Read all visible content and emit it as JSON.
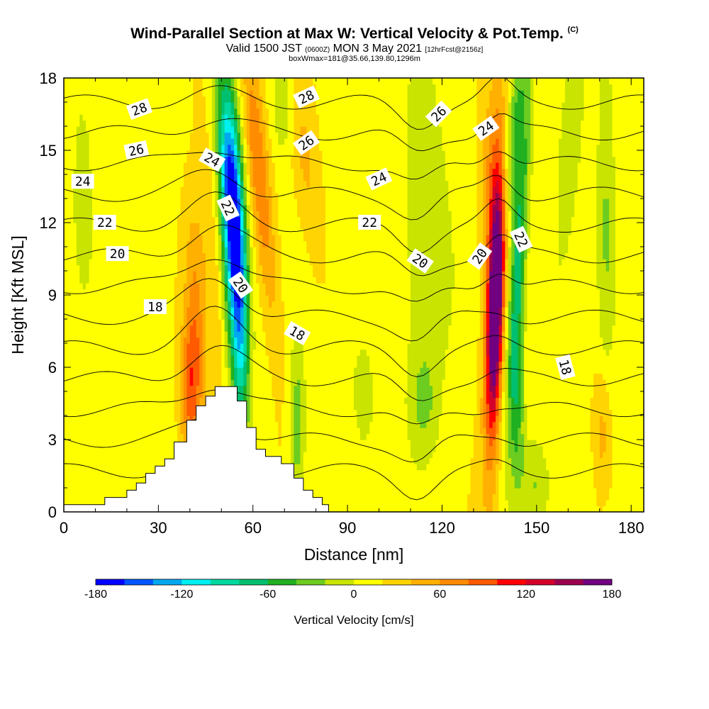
{
  "title": {
    "main": "Wind-Parallel Section at Max W: Vertical Velocity & Pot.Temp.",
    "copyright": "(C)",
    "valid_prefix": "Valid 1500 JST",
    "valid_utc": "(0600Z)",
    "valid_date": "MON 3 May 2021",
    "forecast": "[12hrFcst@2156z]",
    "boxline": "boxWmax=181@35.66,139.80,1296m"
  },
  "chart_data": {
    "type": "heatmap",
    "xlabel": "Distance [nm]",
    "ylabel": "Height [Kft MSL]",
    "xlim": [
      0,
      184
    ],
    "ylim": [
      0,
      18
    ],
    "x_ticks": [
      0,
      30,
      60,
      90,
      120,
      150,
      180
    ],
    "y_ticks": [
      0,
      3,
      6,
      9,
      12,
      15,
      18
    ],
    "colorbar": {
      "label": "Vertical Velocity [cm/s]",
      "min": -180,
      "max": 180,
      "tick_labels": [
        "-180",
        "-120",
        "-60",
        "0",
        "60",
        "120",
        "180"
      ],
      "colors": [
        "#0000ff",
        "#0055ff",
        "#00a8f0",
        "#00f0f0",
        "#00d8a0",
        "#00c070",
        "#20b020",
        "#6ccd20",
        "#c8e400",
        "#ffff00",
        "#ffd400",
        "#ffb000",
        "#ff8c00",
        "#ff5a00",
        "#ff0000",
        "#d4002a",
        "#9c004e",
        "#700080"
      ]
    },
    "terrain": [
      [
        0,
        0.3
      ],
      [
        13,
        0.3
      ],
      [
        13,
        0.6
      ],
      [
        20,
        0.6
      ],
      [
        20,
        0.9
      ],
      [
        23,
        0.9
      ],
      [
        23,
        1.2
      ],
      [
        26,
        1.2
      ],
      [
        26,
        1.6
      ],
      [
        29,
        1.6
      ],
      [
        29,
        1.9
      ],
      [
        32,
        1.9
      ],
      [
        32,
        2.2
      ],
      [
        35,
        2.2
      ],
      [
        35,
        2.9
      ],
      [
        39,
        2.9
      ],
      [
        39,
        3.8
      ],
      [
        42,
        3.8
      ],
      [
        42,
        4.4
      ],
      [
        45,
        4.4
      ],
      [
        45,
        4.8
      ],
      [
        48,
        4.8
      ],
      [
        48,
        5.2
      ],
      [
        55,
        5.2
      ],
      [
        55,
        4.6
      ],
      [
        58,
        4.6
      ],
      [
        58,
        3.5
      ],
      [
        61,
        3.5
      ],
      [
        61,
        2.6
      ],
      [
        64,
        2.6
      ],
      [
        64,
        2.3
      ],
      [
        69,
        2.3
      ],
      [
        69,
        2.0
      ],
      [
        73,
        2.0
      ],
      [
        73,
        1.4
      ],
      [
        76,
        1.4
      ],
      [
        76,
        0.9
      ],
      [
        79,
        0.9
      ],
      [
        79,
        0.6
      ],
      [
        82,
        0.6
      ],
      [
        82,
        0.3
      ],
      [
        84,
        0.3
      ],
      [
        84,
        0
      ]
    ],
    "w_features": [
      {
        "x": 54,
        "y": 12.5,
        "sx": 2.3,
        "sy": 3.2,
        "tilt": -0.14,
        "value": -165
      },
      {
        "x": 53,
        "y": 10.5,
        "sx": 2.6,
        "sy": 5.5,
        "tilt": -0.12,
        "value": -70
      },
      {
        "x": 56,
        "y": 7,
        "sx": 1.8,
        "sy": 2.5,
        "tilt": -0.05,
        "value": -60
      },
      {
        "x": 47,
        "y": 11,
        "sx": 2.5,
        "sy": 8,
        "tilt": -0.2,
        "value": 20
      },
      {
        "x": 40,
        "y": 5,
        "sx": 2.2,
        "sy": 2.2,
        "tilt": 0,
        "value": 70
      },
      {
        "x": 42,
        "y": 8,
        "sx": 2.2,
        "sy": 3.5,
        "tilt": -0.1,
        "value": 40
      },
      {
        "x": 61,
        "y": 15,
        "sx": 2.2,
        "sy": 3.5,
        "tilt": -0.2,
        "value": 50
      },
      {
        "x": 65,
        "y": 11,
        "sx": 2.5,
        "sy": 4,
        "tilt": -0.2,
        "value": 28
      },
      {
        "x": 74,
        "y": 3.5,
        "sx": 1.8,
        "sy": 2.2,
        "tilt": 0,
        "value": -50
      },
      {
        "x": 76,
        "y": 15,
        "sx": 3,
        "sy": 3.5,
        "tilt": -0.3,
        "value": 30
      },
      {
        "x": 70,
        "y": 17,
        "sx": 3,
        "sy": 1.5,
        "tilt": 0,
        "value": -40
      },
      {
        "x": 115,
        "y": 12,
        "sx": 6,
        "sy": 7,
        "tilt": 0,
        "value": -25
      },
      {
        "x": 114,
        "y": 4.5,
        "sx": 3,
        "sy": 1.5,
        "tilt": 0,
        "value": -30
      },
      {
        "x": 137,
        "y": 8.8,
        "sx": 1.6,
        "sy": 3.2,
        "tilt": 0.07,
        "value": 180
      },
      {
        "x": 136.5,
        "y": 9,
        "sx": 2.4,
        "sy": 6,
        "tilt": 0.07,
        "value": 60
      },
      {
        "x": 135,
        "y": 14,
        "sx": 2.5,
        "sy": 2.5,
        "tilt": 0.08,
        "value": 30
      },
      {
        "x": 144,
        "y": 10,
        "sx": 1.8,
        "sy": 5,
        "tilt": 0.12,
        "value": -85
      },
      {
        "x": 144,
        "y": 4,
        "sx": 1.5,
        "sy": 2.5,
        "tilt": 0,
        "value": -45
      },
      {
        "x": 143,
        "y": 16,
        "sx": 2,
        "sy": 2.5,
        "tilt": 0.2,
        "value": -50
      },
      {
        "x": 160,
        "y": 14,
        "sx": 2.5,
        "sy": 4,
        "tilt": 0.2,
        "value": -30
      },
      {
        "x": 172,
        "y": 12,
        "sx": 2,
        "sy": 6,
        "tilt": 0,
        "value": -35
      },
      {
        "x": 171,
        "y": 3.5,
        "sx": 2,
        "sy": 2,
        "tilt": 0,
        "value": 40
      },
      {
        "x": 149,
        "y": 1.2,
        "sx": 3,
        "sy": 1.2,
        "tilt": 0,
        "value": -30
      },
      {
        "x": 6,
        "y": 14,
        "sx": 3,
        "sy": 4,
        "tilt": 0,
        "value": -20
      },
      {
        "x": 95,
        "y": 6,
        "sx": 5,
        "sy": 3,
        "tilt": 0,
        "value": -18
      }
    ],
    "theta_contour_labels": [
      {
        "text": "28",
        "x": 24,
        "y": 16.7,
        "angle": -20
      },
      {
        "text": "26",
        "x": 23,
        "y": 15.0,
        "angle": -12
      },
      {
        "text": "24",
        "x": 47,
        "y": 14.6,
        "angle": 30
      },
      {
        "text": "24",
        "x": 6,
        "y": 13.7,
        "angle": 0
      },
      {
        "text": "22",
        "x": 52,
        "y": 12.6,
        "angle": 65
      },
      {
        "text": "22",
        "x": 13,
        "y": 12.0,
        "angle": 0
      },
      {
        "text": "20",
        "x": 17,
        "y": 10.7,
        "angle": 0
      },
      {
        "text": "20",
        "x": 56,
        "y": 9.4,
        "angle": 55
      },
      {
        "text": "18",
        "x": 29,
        "y": 8.5,
        "angle": 0
      },
      {
        "text": "28",
        "x": 77,
        "y": 17.2,
        "angle": -25
      },
      {
        "text": "26",
        "x": 77,
        "y": 15.3,
        "angle": -35
      },
      {
        "text": "24",
        "x": 100,
        "y": 13.8,
        "angle": -25
      },
      {
        "text": "22",
        "x": 97,
        "y": 12.0,
        "angle": 0
      },
      {
        "text": "26",
        "x": 119,
        "y": 16.5,
        "angle": -45
      },
      {
        "text": "24",
        "x": 134,
        "y": 15.9,
        "angle": -35
      },
      {
        "text": "20",
        "x": 113,
        "y": 10.4,
        "angle": 35
      },
      {
        "text": "20",
        "x": 132,
        "y": 10.6,
        "angle": -55
      },
      {
        "text": "22",
        "x": 145,
        "y": 11.3,
        "angle": 65
      },
      {
        "text": "18",
        "x": 74,
        "y": 7.4,
        "angle": 30
      },
      {
        "text": "18",
        "x": 159,
        "y": 6.0,
        "angle": 75
      }
    ]
  }
}
